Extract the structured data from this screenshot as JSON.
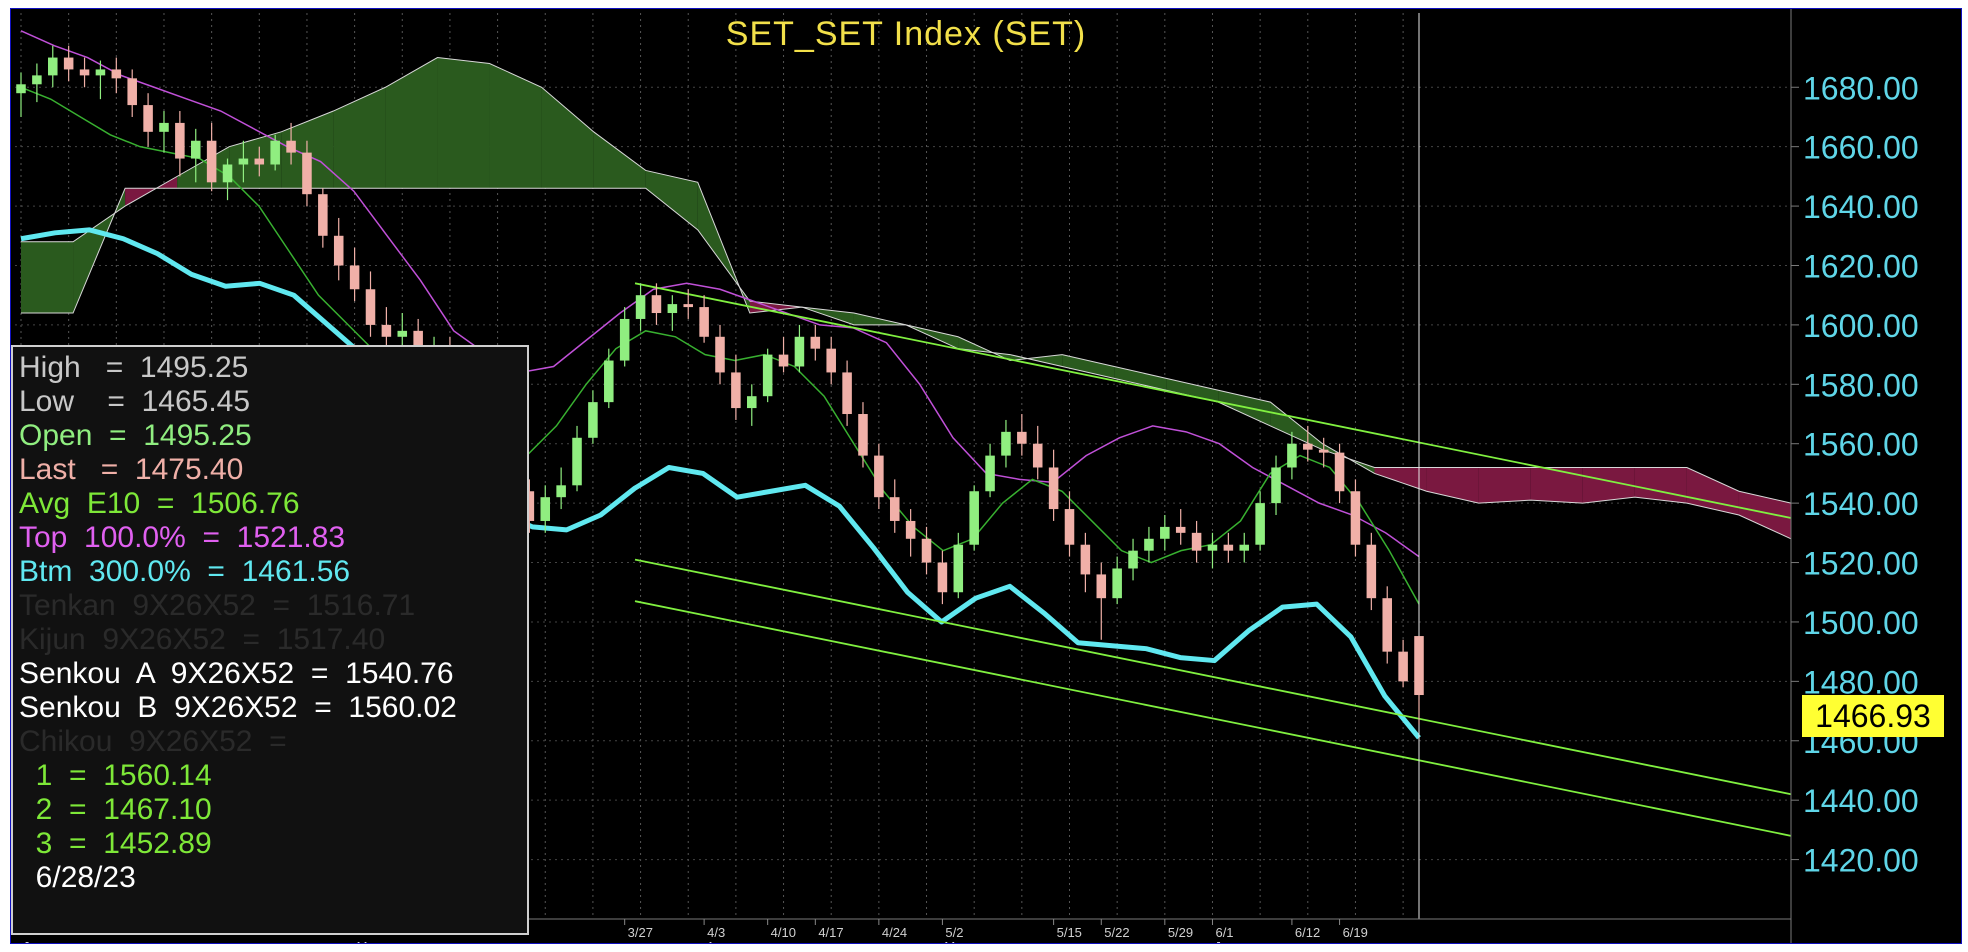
{
  "chart_data": {
    "type": "candlestick",
    "title": "SET_SET Index (SET)",
    "ylim": [
      1400,
      1705
    ],
    "y_ticks": [
      "1420.00",
      "1440.00",
      "1460.00",
      "1480.00",
      "1500.00",
      "1520.00",
      "1540.00",
      "1560.00",
      "1580.00",
      "1600.00",
      "1620.00",
      "1640.00",
      "1660.00",
      "1680.00"
    ],
    "x_date_labels": [
      "3/27",
      "4/3",
      "4/10",
      "4/17",
      "4/24",
      "5/2",
      "5/15",
      "5/22",
      "5/29",
      "6/1",
      "6/12",
      "6/19"
    ],
    "x_month_labels": [
      "Jan",
      "Mar",
      "Apr",
      "May",
      "Jun"
    ],
    "last_price_label": "1466.93",
    "cursor_date": "6/28/23",
    "colors": {
      "background": "#000000",
      "up_candle": "#90ee80",
      "down_candle": "#f0b0a8",
      "kumo_bull": "#2a5a1e",
      "kumo_bear": "#7a1840",
      "top_band": "#c050d8",
      "bottom_band": "#60e8f0",
      "avg_e10": "#38b030",
      "trendline": "#80f040",
      "axis_text": "#5fd6e8",
      "title": "#f2e04a"
    },
    "candles": [
      {
        "d": "Jan",
        "o": 1678,
        "h": 1685,
        "l": 1670,
        "c": 1681
      },
      {
        "d": "Jan",
        "o": 1681,
        "h": 1688,
        "l": 1675,
        "c": 1684
      },
      {
        "d": "Jan",
        "o": 1684,
        "h": 1694,
        "l": 1680,
        "c": 1690
      },
      {
        "d": "Jan",
        "o": 1690,
        "h": 1694,
        "l": 1682,
        "c": 1686
      },
      {
        "d": "Jan",
        "o": 1686,
        "h": 1690,
        "l": 1680,
        "c": 1684
      },
      {
        "d": "Jan",
        "o": 1684,
        "h": 1689,
        "l": 1676,
        "c": 1686
      },
      {
        "d": "Jan",
        "o": 1686,
        "h": 1690,
        "l": 1678,
        "c": 1683
      },
      {
        "d": "Jan",
        "o": 1683,
        "h": 1686,
        "l": 1670,
        "c": 1674
      },
      {
        "d": "Jan",
        "o": 1674,
        "h": 1678,
        "l": 1660,
        "c": 1665
      },
      {
        "d": "Feb",
        "o": 1665,
        "h": 1672,
        "l": 1658,
        "c": 1668
      },
      {
        "d": "Feb",
        "o": 1668,
        "h": 1672,
        "l": 1650,
        "c": 1656
      },
      {
        "d": "Feb",
        "o": 1656,
        "h": 1666,
        "l": 1648,
        "c": 1662
      },
      {
        "d": "Feb",
        "o": 1662,
        "h": 1668,
        "l": 1645,
        "c": 1648
      },
      {
        "d": "Feb",
        "o": 1648,
        "h": 1656,
        "l": 1642,
        "c": 1654
      },
      {
        "d": "Feb",
        "o": 1654,
        "h": 1662,
        "l": 1648,
        "c": 1656
      },
      {
        "d": "Feb",
        "o": 1656,
        "h": 1660,
        "l": 1650,
        "c": 1654
      },
      {
        "d": "Feb",
        "o": 1654,
        "h": 1664,
        "l": 1652,
        "c": 1662
      },
      {
        "d": "Feb",
        "o": 1662,
        "h": 1668,
        "l": 1654,
        "c": 1658
      },
      {
        "d": "Feb",
        "o": 1658,
        "h": 1662,
        "l": 1640,
        "c": 1644
      },
      {
        "d": "Feb",
        "o": 1644,
        "h": 1646,
        "l": 1626,
        "c": 1630
      },
      {
        "d": "Feb",
        "o": 1630,
        "h": 1636,
        "l": 1615,
        "c": 1620
      },
      {
        "d": "Mar",
        "o": 1620,
        "h": 1626,
        "l": 1608,
        "c": 1612
      },
      {
        "d": "Mar",
        "o": 1612,
        "h": 1618,
        "l": 1596,
        "c": 1600
      },
      {
        "d": "Mar",
        "o": 1600,
        "h": 1606,
        "l": 1590,
        "c": 1596
      },
      {
        "d": "Mar",
        "o": 1596,
        "h": 1604,
        "l": 1592,
        "c": 1598
      },
      {
        "d": "Mar",
        "o": 1598,
        "h": 1602,
        "l": 1582,
        "c": 1586
      },
      {
        "d": "Mar",
        "o": 1586,
        "h": 1596,
        "l": 1582,
        "c": 1592
      },
      {
        "d": "Mar",
        "o": 1592,
        "h": 1596,
        "l": 1570,
        "c": 1574
      },
      {
        "d": "Mar",
        "o": 1574,
        "h": 1580,
        "l": 1560,
        "c": 1562
      },
      {
        "d": "Mar",
        "o": 1562,
        "h": 1566,
        "l": 1548,
        "c": 1550
      },
      {
        "d": "Mar",
        "o": 1550,
        "h": 1560,
        "l": 1546,
        "c": 1556
      },
      {
        "d": "Mar",
        "o": 1556,
        "h": 1560,
        "l": 1540,
        "c": 1544
      },
      {
        "d": "Mar",
        "o": 1544,
        "h": 1548,
        "l": 1530,
        "c": 1534
      },
      {
        "d": "Mar",
        "o": 1534,
        "h": 1546,
        "l": 1530,
        "c": 1542
      },
      {
        "d": "Mar",
        "o": 1542,
        "h": 1552,
        "l": 1538,
        "c": 1546
      },
      {
        "d": "Mar",
        "o": 1546,
        "h": 1566,
        "l": 1544,
        "c": 1562
      },
      {
        "d": "Mar",
        "o": 1562,
        "h": 1578,
        "l": 1560,
        "c": 1574
      },
      {
        "d": "Mar",
        "o": 1574,
        "h": 1592,
        "l": 1572,
        "c": 1588
      },
      {
        "d": "3/27",
        "o": 1588,
        "h": 1606,
        "l": 1586,
        "c": 1602
      },
      {
        "d": "3/27",
        "o": 1602,
        "h": 1614,
        "l": 1598,
        "c": 1610
      },
      {
        "d": "3/27",
        "o": 1610,
        "h": 1614,
        "l": 1600,
        "c": 1604
      },
      {
        "d": "3/27",
        "o": 1604,
        "h": 1610,
        "l": 1598,
        "c": 1607
      },
      {
        "d": "3/27",
        "o": 1607,
        "h": 1612,
        "l": 1602,
        "c": 1606
      },
      {
        "d": "4/3",
        "o": 1606,
        "h": 1610,
        "l": 1594,
        "c": 1596
      },
      {
        "d": "4/3",
        "o": 1596,
        "h": 1600,
        "l": 1580,
        "c": 1584
      },
      {
        "d": "4/3",
        "o": 1584,
        "h": 1590,
        "l": 1568,
        "c": 1572
      },
      {
        "d": "4/3",
        "o": 1572,
        "h": 1580,
        "l": 1566,
        "c": 1576
      },
      {
        "d": "4/10",
        "o": 1576,
        "h": 1592,
        "l": 1574,
        "c": 1590
      },
      {
        "d": "4/10",
        "o": 1590,
        "h": 1596,
        "l": 1584,
        "c": 1586
      },
      {
        "d": "4/10",
        "o": 1586,
        "h": 1600,
        "l": 1584,
        "c": 1596
      },
      {
        "d": "4/17",
        "o": 1596,
        "h": 1600,
        "l": 1588,
        "c": 1592
      },
      {
        "d": "4/17",
        "o": 1592,
        "h": 1596,
        "l": 1580,
        "c": 1584
      },
      {
        "d": "4/17",
        "o": 1584,
        "h": 1588,
        "l": 1566,
        "c": 1570
      },
      {
        "d": "4/17",
        "o": 1570,
        "h": 1574,
        "l": 1552,
        "c": 1556
      },
      {
        "d": "4/24",
        "o": 1556,
        "h": 1560,
        "l": 1538,
        "c": 1542
      },
      {
        "d": "4/24",
        "o": 1542,
        "h": 1548,
        "l": 1530,
        "c": 1534
      },
      {
        "d": "4/24",
        "o": 1534,
        "h": 1538,
        "l": 1522,
        "c": 1528
      },
      {
        "d": "4/24",
        "o": 1528,
        "h": 1532,
        "l": 1516,
        "c": 1520
      },
      {
        "d": "5/2",
        "o": 1520,
        "h": 1524,
        "l": 1506,
        "c": 1510
      },
      {
        "d": "5/2",
        "o": 1510,
        "h": 1530,
        "l": 1508,
        "c": 1526
      },
      {
        "d": "5/2",
        "o": 1526,
        "h": 1546,
        "l": 1524,
        "c": 1544
      },
      {
        "d": "5/2",
        "o": 1544,
        "h": 1560,
        "l": 1542,
        "c": 1556
      },
      {
        "d": "5/2",
        "o": 1556,
        "h": 1568,
        "l": 1552,
        "c": 1564
      },
      {
        "d": "5/2",
        "o": 1564,
        "h": 1570,
        "l": 1556,
        "c": 1560
      },
      {
        "d": "5/2",
        "o": 1560,
        "h": 1566,
        "l": 1548,
        "c": 1552
      },
      {
        "d": "5/15",
        "o": 1552,
        "h": 1558,
        "l": 1534,
        "c": 1538
      },
      {
        "d": "5/15",
        "o": 1538,
        "h": 1544,
        "l": 1522,
        "c": 1526
      },
      {
        "d": "5/15",
        "o": 1526,
        "h": 1530,
        "l": 1510,
        "c": 1516
      },
      {
        "d": "5/22",
        "o": 1516,
        "h": 1520,
        "l": 1494,
        "c": 1508
      },
      {
        "d": "5/22",
        "o": 1508,
        "h": 1522,
        "l": 1506,
        "c": 1518
      },
      {
        "d": "5/22",
        "o": 1518,
        "h": 1528,
        "l": 1514,
        "c": 1524
      },
      {
        "d": "5/22",
        "o": 1524,
        "h": 1532,
        "l": 1520,
        "c": 1528
      },
      {
        "d": "5/29",
        "o": 1528,
        "h": 1536,
        "l": 1524,
        "c": 1532
      },
      {
        "d": "5/29",
        "o": 1532,
        "h": 1538,
        "l": 1526,
        "c": 1530
      },
      {
        "d": "5/29",
        "o": 1530,
        "h": 1534,
        "l": 1520,
        "c": 1524
      },
      {
        "d": "6/1",
        "o": 1524,
        "h": 1530,
        "l": 1518,
        "c": 1526
      },
      {
        "d": "6/1",
        "o": 1526,
        "h": 1530,
        "l": 1520,
        "c": 1524
      },
      {
        "d": "6/1",
        "o": 1524,
        "h": 1530,
        "l": 1520,
        "c": 1526
      },
      {
        "d": "6/1",
        "o": 1526,
        "h": 1544,
        "l": 1524,
        "c": 1540
      },
      {
        "d": "6/1",
        "o": 1540,
        "h": 1556,
        "l": 1536,
        "c": 1552
      },
      {
        "d": "6/12",
        "o": 1552,
        "h": 1564,
        "l": 1548,
        "c": 1560
      },
      {
        "d": "6/12",
        "o": 1560,
        "h": 1566,
        "l": 1554,
        "c": 1558
      },
      {
        "d": "6/12",
        "o": 1558,
        "h": 1562,
        "l": 1552,
        "c": 1557
      },
      {
        "d": "6/19",
        "o": 1557,
        "h": 1560,
        "l": 1540,
        "c": 1544
      },
      {
        "d": "6/19",
        "o": 1544,
        "h": 1548,
        "l": 1522,
        "c": 1526
      },
      {
        "d": "6/19",
        "o": 1526,
        "h": 1530,
        "l": 1504,
        "c": 1508
      },
      {
        "d": "6/19",
        "o": 1508,
        "h": 1512,
        "l": 1486,
        "c": 1490
      },
      {
        "d": "6/19",
        "o": 1490,
        "h": 1494,
        "l": 1478,
        "c": 1480
      },
      {
        "d": "6/26",
        "o": 1495.25,
        "h": 1495.25,
        "l": 1465.45,
        "c": 1475.4
      }
    ],
    "top_band": [
      1699,
      1694,
      1690,
      1684,
      1680,
      1676,
      1672,
      1666,
      1660,
      1655,
      1645,
      1630,
      1615,
      1598,
      1590,
      1584,
      1586,
      1595,
      1604,
      1612,
      1614,
      1612,
      1608,
      1604,
      1600,
      1599,
      1594,
      1580,
      1562,
      1550,
      1548,
      1547,
      1556,
      1562,
      1566,
      1564,
      1560,
      1552,
      1546,
      1540,
      1536,
      1530,
      1522
    ],
    "bottom_band": [
      1629,
      1631,
      1632,
      1629,
      1624,
      1617,
      1613,
      1614,
      1610,
      1600,
      1590,
      1575,
      1560,
      1545,
      1537,
      1532,
      1531,
      1536,
      1545,
      1552,
      1550,
      1542,
      1544,
      1546,
      1539,
      1525,
      1510,
      1500,
      1508,
      1512,
      1503,
      1493,
      1492,
      1491,
      1488,
      1487,
      1497,
      1505,
      1506,
      1495,
      1475,
      1461
    ],
    "avg_e10": [
      1680,
      1676,
      1670,
      1664,
      1660,
      1658,
      1656,
      1650,
      1640,
      1625,
      1610,
      1600,
      1590,
      1578,
      1566,
      1556,
      1552,
      1556,
      1566,
      1580,
      1592,
      1598,
      1596,
      1590,
      1588,
      1590,
      1586,
      1576,
      1560,
      1544,
      1532,
      1524,
      1528,
      1540,
      1548,
      1544,
      1534,
      1524,
      1520,
      1524,
      1526,
      1534,
      1550,
      1556,
      1552,
      1540,
      1524,
      1506
    ],
    "kumo": {
      "senkou_a": [
        1628,
        1628,
        1640,
        1650,
        1660,
        1665,
        1672,
        1680,
        1690,
        1688,
        1680,
        1665,
        1652,
        1648,
        1604,
        1606,
        1604,
        1600,
        1596,
        1588,
        1590,
        1586,
        1582,
        1578,
        1574,
        1560,
        1550,
        1544,
        1540,
        1541,
        1540,
        1542,
        1540,
        1536,
        1528
      ],
      "senkou_b": [
        1604,
        1604,
        1646,
        1646,
        1646,
        1646,
        1646,
        1646,
        1646,
        1646,
        1646,
        1646,
        1646,
        1632,
        1608,
        1606,
        1600,
        1600,
        1592,
        1590,
        1586,
        1582,
        1578,
        1574,
        1566,
        1558,
        1552,
        1552,
        1552,
        1552,
        1552,
        1552,
        1552,
        1544,
        1540
      ]
    },
    "readout": {
      "high_label": "High",
      "high_value": "1495.25",
      "low_label": "Low",
      "low_value": "1465.45",
      "open_label": "Open",
      "open_value": "1495.25",
      "last_label": "Last",
      "last_value": "1475.40",
      "avg_label": "Avg  E10",
      "avg_value": "1506.76",
      "top_label": "Top  100.0%",
      "top_value": "1521.83",
      "btm_label": "Btm  300.0%",
      "btm_value": "1461.56",
      "tenkan_label": "Tenkan  9X26X52",
      "tenkan_value": "1516.71",
      "kijun_label": "Kijun  9X26X52",
      "kijun_value": "1517.40",
      "senkou_a_label": "Senkou  A  9X26X52",
      "senkou_a_value": "1540.76",
      "senkou_b_label": "Senkou  B  9X26X52",
      "senkou_b_value": "1560.02",
      "chikou_label": "Chikou  9X26X52",
      "line1_label": "1",
      "line1_value": "1560.14",
      "line2_label": "2",
      "line2_value": "1467.10",
      "line3_label": "3",
      "line3_value": "1452.89",
      "date": "6/28/23"
    }
  }
}
